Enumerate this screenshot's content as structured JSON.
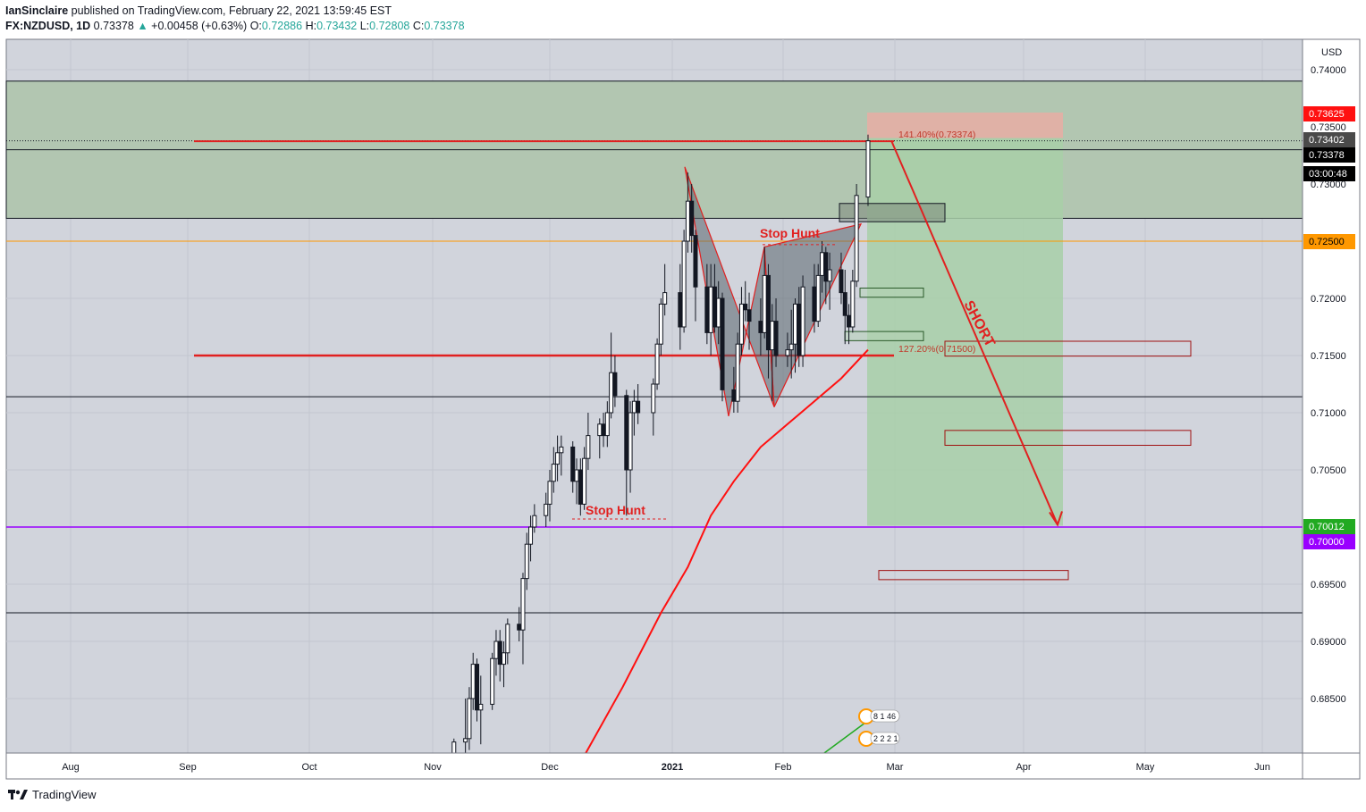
{
  "header": {
    "publisher": "IanSinclaire",
    "published_text": "published on TradingView.com, February 22, 2021 13:59:45 EST",
    "symbol": "FX:NZDUSD, 1D",
    "last": "0.73378",
    "change": "+0.00458 (+0.63%)",
    "o_label": "O:",
    "o_value": "0.72886",
    "h_label": "H:",
    "h_value": "0.73432",
    "l_label": "L:",
    "l_value": "0.72808",
    "c_label": "C:",
    "c_value": "0.73378"
  },
  "footer": {
    "brand": "TradingView"
  },
  "colors": {
    "up": "#26a69a",
    "background": "#d1d4dc",
    "zone": "#b2c6b1",
    "profit_zone": "#a8cfa8",
    "loss_zone": "#e0b1a6",
    "ma": "#ff1010",
    "red": "#e12020",
    "purple": "#9900ff",
    "orange": "#ff9800"
  },
  "chart_data": {
    "type": "candlestick",
    "currency_label": "USD",
    "y_ticks": [
      "0.74000",
      "0.73500",
      "0.73000",
      "0.72000",
      "0.71500",
      "0.71000",
      "0.70500",
      "0.69500",
      "0.69000",
      "0.68500"
    ],
    "x_ticks": [
      "Aug",
      "Sep",
      "Oct",
      "Nov",
      "Dec",
      "2021",
      "Feb",
      "Mar",
      "Apr",
      "May",
      "Jun"
    ],
    "price_badges": [
      {
        "price": 0.73625,
        "label": "0.73625",
        "color": "#ff1010",
        "text_color": "#ffffff"
      },
      {
        "price": 0.73402,
        "label": "0.73402",
        "color": "#4a4a4a",
        "text_color": "#ffffff"
      },
      {
        "price": 0.73378,
        "label": "0.73378",
        "color": "#000000",
        "text_color": "#ffffff"
      },
      {
        "price": 0.73,
        "label": "03:00:48",
        "color": "#000000",
        "text_color": "#ffffff"
      },
      {
        "price": 0.725,
        "label": "0.72500",
        "color": "#ff9800",
        "text_color": "#000000"
      },
      {
        "price": 0.70012,
        "label": "0.70012",
        "color": "#22aa22",
        "text_color": "#ffffff"
      },
      {
        "price": 0.7,
        "label": "0.70000",
        "color": "#9900ff",
        "text_color": "#ffffff"
      }
    ],
    "annotations": {
      "stop_hunt_1": "Stop Hunt",
      "stop_hunt_2": "Stop Hunt",
      "short": "SHORT",
      "fib_1414": "141.40%(0.73374)",
      "fib_1272": "127.20%(0.71500)",
      "badge_1": "8 1 46",
      "badge_2": "2 2 2 1"
    },
    "levels": {
      "zone_top": 0.739,
      "zone_bottom": 0.727,
      "line_0733": 0.733,
      "line_0725": 0.725,
      "line_0711": 0.7114,
      "line_07": 0.7,
      "line_0692": 0.6925,
      "fib_1414": 0.73374,
      "fib_1272": 0.715
    },
    "candles": [
      {
        "d": "2020-11-06",
        "o": 0.6795,
        "h": 0.6815,
        "l": 0.679,
        "c": 0.6812
      },
      {
        "d": "2020-11-09",
        "o": 0.6812,
        "h": 0.685,
        "l": 0.68,
        "c": 0.6815
      },
      {
        "d": "2020-11-10",
        "o": 0.6815,
        "h": 0.686,
        "l": 0.6805,
        "c": 0.685
      },
      {
        "d": "2020-11-11",
        "o": 0.685,
        "h": 0.689,
        "l": 0.684,
        "c": 0.688
      },
      {
        "d": "2020-11-12",
        "o": 0.688,
        "h": 0.6885,
        "l": 0.683,
        "c": 0.684
      },
      {
        "d": "2020-11-13",
        "o": 0.684,
        "h": 0.687,
        "l": 0.681,
        "c": 0.6845
      },
      {
        "d": "2020-11-16",
        "o": 0.6845,
        "h": 0.689,
        "l": 0.684,
        "c": 0.6885
      },
      {
        "d": "2020-11-17",
        "o": 0.6885,
        "h": 0.691,
        "l": 0.687,
        "c": 0.69
      },
      {
        "d": "2020-11-18",
        "o": 0.69,
        "h": 0.691,
        "l": 0.6865,
        "c": 0.688
      },
      {
        "d": "2020-11-19",
        "o": 0.688,
        "h": 0.69,
        "l": 0.686,
        "c": 0.689
      },
      {
        "d": "2020-11-20",
        "o": 0.689,
        "h": 0.692,
        "l": 0.688,
        "c": 0.6915
      },
      {
        "d": "2020-11-23",
        "o": 0.6915,
        "h": 0.693,
        "l": 0.69,
        "c": 0.691
      },
      {
        "d": "2020-11-24",
        "o": 0.691,
        "h": 0.696,
        "l": 0.688,
        "c": 0.6955
      },
      {
        "d": "2020-11-25",
        "o": 0.6955,
        "h": 0.6995,
        "l": 0.6945,
        "c": 0.6985
      },
      {
        "d": "2020-11-26",
        "o": 0.6985,
        "h": 0.701,
        "l": 0.697,
        "c": 0.7
      },
      {
        "d": "2020-11-27",
        "o": 0.7,
        "h": 0.702,
        "l": 0.6995,
        "c": 0.701
      },
      {
        "d": "2020-11-30",
        "o": 0.701,
        "h": 0.703,
        "l": 0.7,
        "c": 0.702
      },
      {
        "d": "2020-12-01",
        "o": 0.702,
        "h": 0.705,
        "l": 0.7005,
        "c": 0.704
      },
      {
        "d": "2020-12-02",
        "o": 0.704,
        "h": 0.707,
        "l": 0.703,
        "c": 0.7055
      },
      {
        "d": "2020-12-03",
        "o": 0.7055,
        "h": 0.708,
        "l": 0.704,
        "c": 0.7065
      },
      {
        "d": "2020-12-04",
        "o": 0.7065,
        "h": 0.708,
        "l": 0.7045,
        "c": 0.707
      },
      {
        "d": "2020-12-07",
        "o": 0.707,
        "h": 0.7075,
        "l": 0.703,
        "c": 0.704
      },
      {
        "d": "2020-12-08",
        "o": 0.704,
        "h": 0.706,
        "l": 0.702,
        "c": 0.705
      },
      {
        "d": "2020-12-09",
        "o": 0.705,
        "h": 0.706,
        "l": 0.701,
        "c": 0.702
      },
      {
        "d": "2020-12-10",
        "o": 0.702,
        "h": 0.707,
        "l": 0.7015,
        "c": 0.706
      },
      {
        "d": "2020-12-11",
        "o": 0.706,
        "h": 0.71,
        "l": 0.705,
        "c": 0.708
      },
      {
        "d": "2020-12-14",
        "o": 0.708,
        "h": 0.7095,
        "l": 0.706,
        "c": 0.709
      },
      {
        "d": "2020-12-15",
        "o": 0.709,
        "h": 0.71,
        "l": 0.707,
        "c": 0.708
      },
      {
        "d": "2020-12-16",
        "o": 0.708,
        "h": 0.711,
        "l": 0.707,
        "c": 0.71
      },
      {
        "d": "2020-12-17",
        "o": 0.71,
        "h": 0.717,
        "l": 0.7095,
        "c": 0.7135
      },
      {
        "d": "2020-12-18",
        "o": 0.7135,
        "h": 0.715,
        "l": 0.7105,
        "c": 0.7115
      },
      {
        "d": "2020-12-21",
        "o": 0.7115,
        "h": 0.712,
        "l": 0.701,
        "c": 0.705
      },
      {
        "d": "2020-12-22",
        "o": 0.705,
        "h": 0.711,
        "l": 0.703,
        "c": 0.71
      },
      {
        "d": "2020-12-23",
        "o": 0.71,
        "h": 0.712,
        "l": 0.708,
        "c": 0.711
      },
      {
        "d": "2020-12-24",
        "o": 0.711,
        "h": 0.7125,
        "l": 0.709,
        "c": 0.71
      },
      {
        "d": "2020-12-28",
        "o": 0.71,
        "h": 0.713,
        "l": 0.708,
        "c": 0.7125
      },
      {
        "d": "2020-12-29",
        "o": 0.7125,
        "h": 0.7165,
        "l": 0.712,
        "c": 0.716
      },
      {
        "d": "2020-12-30",
        "o": 0.716,
        "h": 0.72,
        "l": 0.715,
        "c": 0.7195
      },
      {
        "d": "2020-12-31",
        "o": 0.7195,
        "h": 0.723,
        "l": 0.7185,
        "c": 0.7205
      },
      {
        "d": "2021-01-04",
        "o": 0.7205,
        "h": 0.723,
        "l": 0.7155,
        "c": 0.7175
      },
      {
        "d": "2021-01-05",
        "o": 0.7175,
        "h": 0.726,
        "l": 0.717,
        "c": 0.725
      },
      {
        "d": "2021-01-06",
        "o": 0.725,
        "h": 0.731,
        "l": 0.724,
        "c": 0.7285
      },
      {
        "d": "2021-01-07",
        "o": 0.7285,
        "h": 0.73,
        "l": 0.724,
        "c": 0.7255
      },
      {
        "d": "2021-01-08",
        "o": 0.7255,
        "h": 0.726,
        "l": 0.718,
        "c": 0.721
      },
      {
        "d": "2021-01-11",
        "o": 0.721,
        "h": 0.723,
        "l": 0.716,
        "c": 0.717
      },
      {
        "d": "2021-01-12",
        "o": 0.717,
        "h": 0.723,
        "l": 0.715,
        "c": 0.721
      },
      {
        "d": "2021-01-13",
        "o": 0.721,
        "h": 0.723,
        "l": 0.717,
        "c": 0.7175
      },
      {
        "d": "2021-01-14",
        "o": 0.7175,
        "h": 0.7215,
        "l": 0.716,
        "c": 0.72
      },
      {
        "d": "2021-01-15",
        "o": 0.72,
        "h": 0.7205,
        "l": 0.711,
        "c": 0.712
      },
      {
        "d": "2021-01-18",
        "o": 0.712,
        "h": 0.714,
        "l": 0.71,
        "c": 0.711
      },
      {
        "d": "2021-01-19",
        "o": 0.711,
        "h": 0.717,
        "l": 0.71,
        "c": 0.716
      },
      {
        "d": "2021-01-20",
        "o": 0.716,
        "h": 0.721,
        "l": 0.715,
        "c": 0.7195
      },
      {
        "d": "2021-01-21",
        "o": 0.7195,
        "h": 0.7215,
        "l": 0.718,
        "c": 0.719
      },
      {
        "d": "2021-01-22",
        "o": 0.719,
        "h": 0.7205,
        "l": 0.7155,
        "c": 0.718
      },
      {
        "d": "2021-01-25",
        "o": 0.718,
        "h": 0.72,
        "l": 0.715,
        "c": 0.717
      },
      {
        "d": "2021-01-26",
        "o": 0.717,
        "h": 0.7245,
        "l": 0.7165,
        "c": 0.722
      },
      {
        "d": "2021-01-27",
        "o": 0.722,
        "h": 0.723,
        "l": 0.713,
        "c": 0.7155
      },
      {
        "d": "2021-01-28",
        "o": 0.7155,
        "h": 0.7195,
        "l": 0.711,
        "c": 0.718
      },
      {
        "d": "2021-01-29",
        "o": 0.718,
        "h": 0.72,
        "l": 0.714,
        "c": 0.715
      },
      {
        "d": "2021-02-01",
        "o": 0.715,
        "h": 0.717,
        "l": 0.714,
        "c": 0.7155
      },
      {
        "d": "2021-02-02",
        "o": 0.7155,
        "h": 0.719,
        "l": 0.713,
        "c": 0.716
      },
      {
        "d": "2021-02-03",
        "o": 0.716,
        "h": 0.72,
        "l": 0.7135,
        "c": 0.7195
      },
      {
        "d": "2021-02-04",
        "o": 0.7195,
        "h": 0.721,
        "l": 0.714,
        "c": 0.715
      },
      {
        "d": "2021-02-05",
        "o": 0.715,
        "h": 0.722,
        "l": 0.714,
        "c": 0.721
      },
      {
        "d": "2021-02-08",
        "o": 0.721,
        "h": 0.723,
        "l": 0.717,
        "c": 0.718
      },
      {
        "d": "2021-02-09",
        "o": 0.718,
        "h": 0.723,
        "l": 0.7175,
        "c": 0.722
      },
      {
        "d": "2021-02-10",
        "o": 0.722,
        "h": 0.725,
        "l": 0.7205,
        "c": 0.724
      },
      {
        "d": "2021-02-11",
        "o": 0.724,
        "h": 0.7245,
        "l": 0.7195,
        "c": 0.7215
      },
      {
        "d": "2021-02-12",
        "o": 0.7215,
        "h": 0.724,
        "l": 0.719,
        "c": 0.7225
      },
      {
        "d": "2021-02-15",
        "o": 0.7225,
        "h": 0.724,
        "l": 0.7195,
        "c": 0.7205
      },
      {
        "d": "2021-02-16",
        "o": 0.7205,
        "h": 0.7225,
        "l": 0.716,
        "c": 0.7185
      },
      {
        "d": "2021-02-17",
        "o": 0.7185,
        "h": 0.7195,
        "l": 0.716,
        "c": 0.7175
      },
      {
        "d": "2021-02-18",
        "o": 0.7175,
        "h": 0.7225,
        "l": 0.717,
        "c": 0.7215
      },
      {
        "d": "2021-02-19",
        "o": 0.7215,
        "h": 0.73,
        "l": 0.721,
        "c": 0.729
      },
      {
        "d": "2021-02-22",
        "o": 0.72886,
        "h": 0.73432,
        "l": 0.72808,
        "c": 0.73378
      }
    ],
    "moving_average": [
      {
        "d": "2020-12-10",
        "v": 0.68
      },
      {
        "d": "2020-12-20",
        "v": 0.686
      },
      {
        "d": "2020-12-30",
        "v": 0.6925
      },
      {
        "d": "2021-01-06",
        "v": 0.6965
      },
      {
        "d": "2021-01-12",
        "v": 0.701
      },
      {
        "d": "2021-01-18",
        "v": 0.704
      },
      {
        "d": "2021-01-25",
        "v": 0.707
      },
      {
        "d": "2021-02-01",
        "v": 0.709
      },
      {
        "d": "2021-02-08",
        "v": 0.711
      },
      {
        "d": "2021-02-15",
        "v": 0.713
      },
      {
        "d": "2021-02-22",
        "v": 0.7155
      }
    ]
  }
}
